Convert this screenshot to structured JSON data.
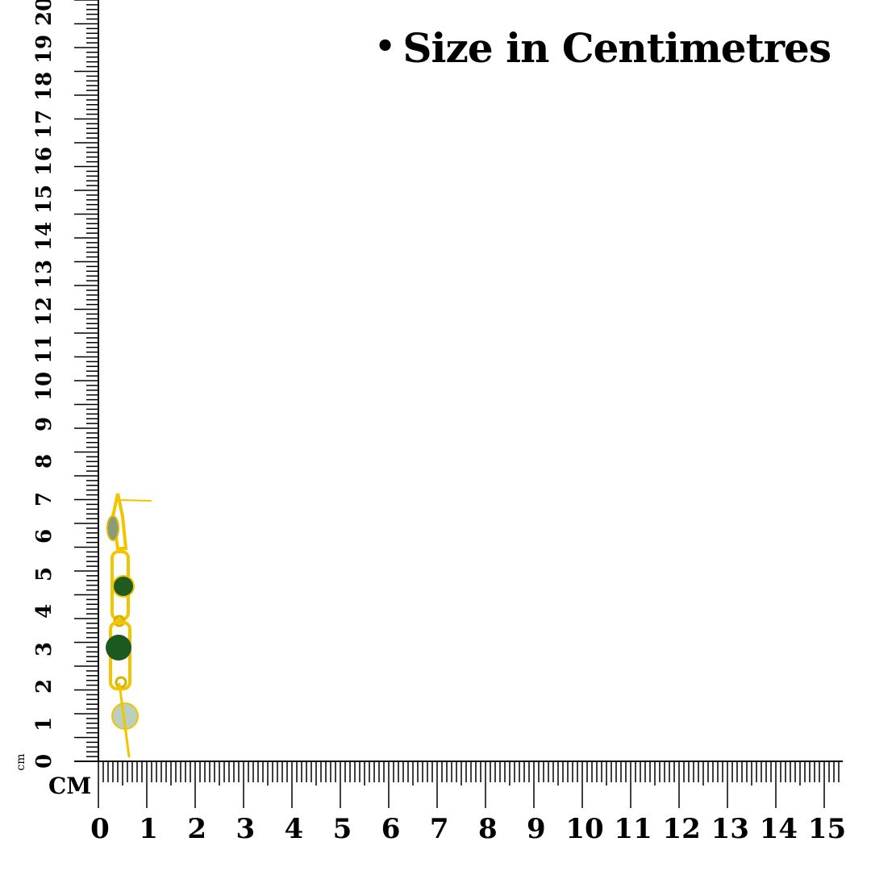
{
  "title": "Size in Centimetres",
  "bullet": "•",
  "unit_horizontal": "CM",
  "unit_vertical": "cm",
  "vertical_ruler": {
    "labels": [
      "0",
      "1",
      "2",
      "3",
      "4",
      "5",
      "6",
      "7",
      "8",
      "9",
      "10",
      "11",
      "12",
      "13",
      "14",
      "15",
      "16",
      "17",
      "18",
      "19",
      "20"
    ]
  },
  "horizontal_ruler": {
    "labels": [
      "0",
      "1",
      "2",
      "3",
      "4",
      "5",
      "6",
      "7",
      "8",
      "9",
      "10",
      "11",
      "12",
      "13",
      "14",
      "15"
    ]
  },
  "product": {
    "metal_color": "#f2c500",
    "stone_colors": [
      "#8a9a7a",
      "#1f5a1f",
      "#1a5a20",
      "#b9cfbf"
    ]
  }
}
